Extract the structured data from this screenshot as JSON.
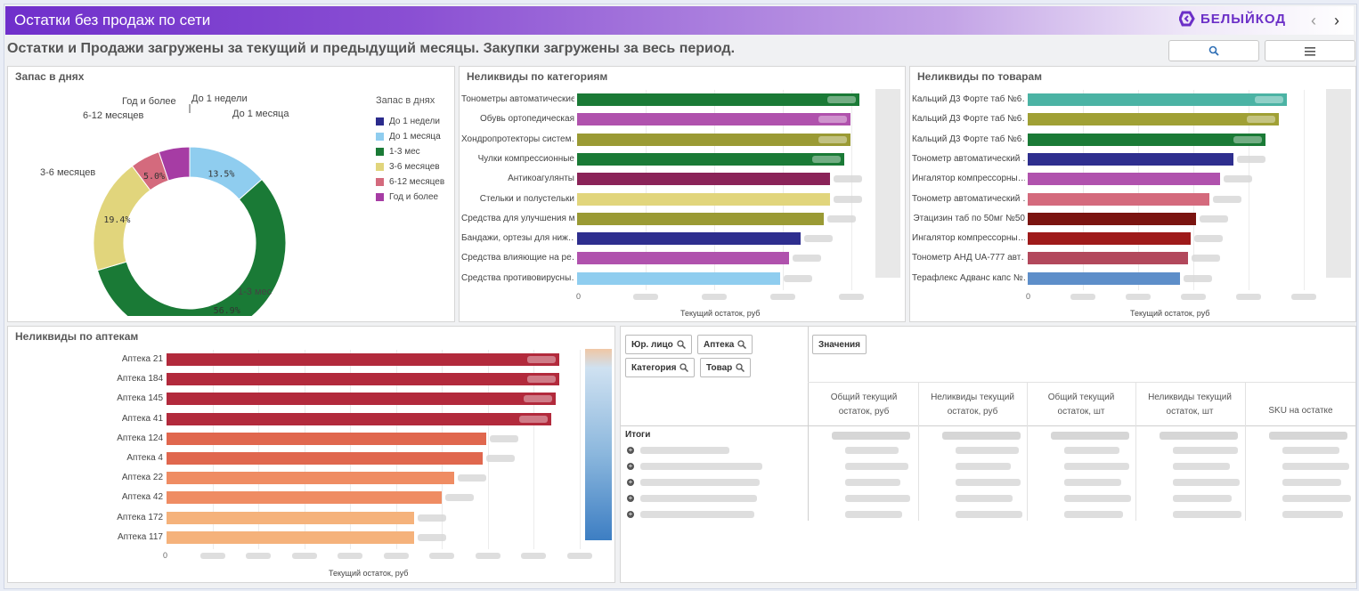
{
  "app": {
    "title": "Остатки без продаж по сети",
    "brand": "БЕЛЫЙКОД",
    "subtitle": "Остатки и Продажи загружены за текущий и предыдущий месяцы. Закупки загружены за весь период.",
    "nav_prev": "‹",
    "nav_next": "›"
  },
  "donut": {
    "title": "Запас в днях",
    "legend_title": "Запас в днях",
    "segments": [
      {
        "label": "До 1 недели",
        "legend": "До 1 недели",
        "pct": 0.0,
        "pct_label": "",
        "color": "#2b2b8c"
      },
      {
        "label": "До 1 месяца",
        "legend": "До 1 месяца",
        "pct": 13.5,
        "pct_label": "13.5%",
        "color": "#8fcdef"
      },
      {
        "label": "1-3 мес",
        "legend": "1-3 мес",
        "pct": 56.9,
        "pct_label": "56.9%",
        "color": "#1a7a36"
      },
      {
        "label": "3-6 месяцев",
        "legend": "3-6 месяцев",
        "pct": 19.4,
        "pct_label": "19.4%",
        "color": "#e1d57c"
      },
      {
        "label": "6-12 месяцев",
        "legend": "6-12 месяцев",
        "pct": 5.0,
        "pct_label": "5.0%",
        "color": "#d46a7d"
      },
      {
        "label": "Год и более",
        "legend": "Год и более",
        "pct": 5.2,
        "pct_label": "",
        "color": "#a63ca4"
      }
    ]
  },
  "categories_chart": {
    "title": "Неликвиды по категориям",
    "xlabel": "Текущий остаток, руб",
    "axis_zero": "0",
    "items": [
      {
        "label": "Тонометры автоматические",
        "value": 0.96,
        "color": "#1a7a36"
      },
      {
        "label": "Обувь ортопедическая",
        "value": 0.93,
        "color": "#b052ad"
      },
      {
        "label": "Хондропротекторы систем…",
        "value": 0.93,
        "color": "#9a9a34"
      },
      {
        "label": "Чулки компрессионные",
        "value": 0.91,
        "color": "#1a7a36"
      },
      {
        "label": "Антикоагулянты",
        "value": 0.86,
        "color": "#8a2358"
      },
      {
        "label": "Стельки и полустельки",
        "value": 0.86,
        "color": "#e1d57c"
      },
      {
        "label": "Средства для улучшения м…",
        "value": 0.84,
        "color": "#9a9a34"
      },
      {
        "label": "Бандажи, ортезы для ниж…",
        "value": 0.76,
        "color": "#2e2e8e"
      },
      {
        "label": "Средства влияющие на ре…",
        "value": 0.72,
        "color": "#b052ad"
      },
      {
        "label": "Средства противовирусны…",
        "value": 0.69,
        "color": "#8fcdef"
      }
    ]
  },
  "goods_chart": {
    "title": "Неликвиды по товарам",
    "xlabel": "Текущий остаток, руб",
    "axis_zero": "0",
    "items": [
      {
        "label": "Кальций Д3 Форте таб №6…",
        "value": 0.97,
        "color": "#4bb3a4"
      },
      {
        "label": "Кальций Д3 Форте таб №6…",
        "value": 0.94,
        "color": "#a0a035"
      },
      {
        "label": "Кальций Д3 Форте таб №6…",
        "value": 0.89,
        "color": "#1a7a36"
      },
      {
        "label": "Тонометр автоматический …",
        "value": 0.77,
        "color": "#2e2e8e"
      },
      {
        "label": "Ингалятор компрессорны…",
        "value": 0.72,
        "color": "#b052ad"
      },
      {
        "label": "Тонометр автоматический …",
        "value": 0.68,
        "color": "#d46a7d"
      },
      {
        "label": "Этацизин таб по 50мг №50",
        "value": 0.63,
        "color": "#7a1410"
      },
      {
        "label": "Ингалятор компрессорны…",
        "value": 0.61,
        "color": "#9e1a1a"
      },
      {
        "label": "Тонометр АНД UA-777 авт…",
        "value": 0.6,
        "color": "#b2485c"
      },
      {
        "label": "Терафлекс Адванс капс №…",
        "value": 0.57,
        "color": "#5d8ec9"
      }
    ]
  },
  "pharmacies_chart": {
    "title": "Неликвиды по аптекам",
    "xlabel": "Текущий остаток, руб",
    "axis_zero": "0",
    "items": [
      {
        "label": "Аптека 21",
        "value": 0.97,
        "color": "#b22a3c"
      },
      {
        "label": "Аптека 184",
        "value": 0.97,
        "color": "#b22a3c"
      },
      {
        "label": "Аптека 145",
        "value": 0.96,
        "color": "#b22a3c"
      },
      {
        "label": "Аптека 41",
        "value": 0.95,
        "color": "#b22a3c"
      },
      {
        "label": "Аптека 124",
        "value": 0.79,
        "color": "#e0674e"
      },
      {
        "label": "Аптека 4",
        "value": 0.78,
        "color": "#e0674e"
      },
      {
        "label": "Аптека 22",
        "value": 0.71,
        "color": "#ef8c63"
      },
      {
        "label": "Аптека 42",
        "value": 0.68,
        "color": "#ef8c63"
      },
      {
        "label": "Аптека 172",
        "value": 0.61,
        "color": "#f5b27b"
      },
      {
        "label": "Аптека 117",
        "value": 0.61,
        "color": "#f5b27b"
      }
    ]
  },
  "pivot": {
    "filters": [
      "Юр. лицо",
      "Аптека",
      "Категория",
      "Товар"
    ],
    "values_label": "Значения",
    "columns": [
      "Общий текущий остаток, руб",
      "Неликвиды текущий остаток, руб",
      "Общий текущий остаток, шт",
      "Неликвиды текущий остаток, шт",
      "SKU на остатке"
    ],
    "totals_label": "Итоги",
    "expand_icon": "plus-circle-icon",
    "row_count": 5
  },
  "colors": {
    "accent": "#6f2fcb"
  }
}
